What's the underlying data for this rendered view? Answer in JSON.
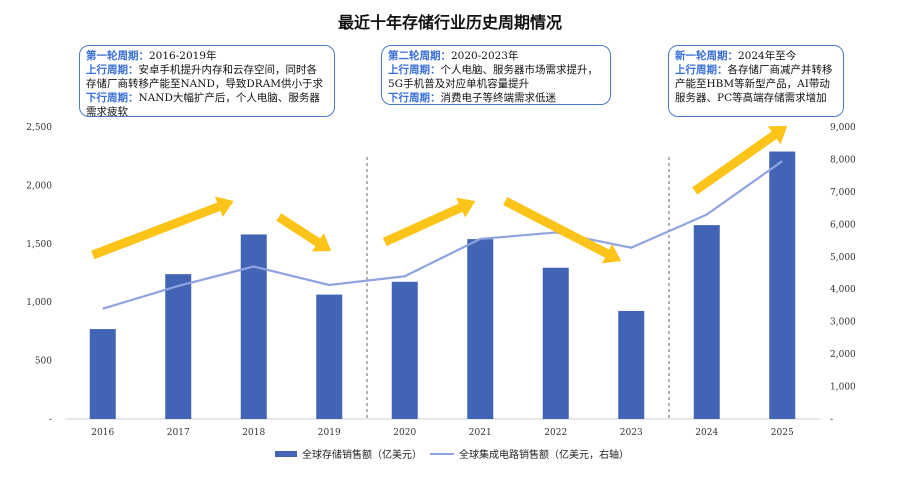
{
  "title": "最近十年存储行业历史周期情况",
  "chart_data": {
    "type": "bar+line",
    "categories": [
      "2016",
      "2017",
      "2018",
      "2019",
      "2020",
      "2021",
      "2022",
      "2023",
      "2024",
      "2025"
    ],
    "series": [
      {
        "name": "全球存储销售额（亿美元）",
        "type": "bar",
        "axis": "left",
        "values": [
          770,
          1240,
          1580,
          1065,
          1175,
          1540,
          1295,
          925,
          1660,
          2290
        ]
      },
      {
        "name": "全球集成电路销售额（亿美元，右轴）",
        "type": "line",
        "axis": "right",
        "values": [
          3400,
          4100,
          4700,
          4130,
          4400,
          5550,
          5750,
          5280,
          6300,
          7950
        ]
      }
    ],
    "left_axis": {
      "ylim": [
        0,
        2500
      ],
      "ticks": [
        "-",
        "500",
        "1,000",
        "1,500",
        "2,000",
        "2,500"
      ]
    },
    "right_axis": {
      "ylim": [
        0,
        9000
      ],
      "ticks": [
        "-",
        "1,000",
        "2,000",
        "3,000",
        "4,000",
        "5,000",
        "6,000",
        "7,000",
        "8,000",
        "9,000"
      ]
    },
    "colors": {
      "bar": "#4264b4",
      "line": "#8ea3e0",
      "arrow": "#fcc419",
      "divider": "#999999"
    },
    "trend_arrows": [
      {
        "from": "2016",
        "to": "2018",
        "direction": "up"
      },
      {
        "from": "2018",
        "to": "2019",
        "direction": "down"
      },
      {
        "from": "2020",
        "to": "2021",
        "direction": "up"
      },
      {
        "from": "2021",
        "to": "2023",
        "direction": "down"
      },
      {
        "from": "2024",
        "to": "2025",
        "direction": "up"
      }
    ],
    "dividers_between": [
      [
        "2019",
        "2020"
      ],
      [
        "2023",
        "2024"
      ]
    ]
  },
  "annotations": [
    {
      "lines": [
        [
          {
            "k": "第一轮周期：",
            "t": "2016-2019年"
          }
        ],
        [
          {
            "k": "上行周期：",
            "t": "安卓手机提升内存和云存空间，同时各"
          }
        ],
        [
          {
            "k": "",
            "t": "存储厂商转移产能至NAND，导致DRAM供小于求"
          }
        ],
        [
          {
            "k": "下行周期：",
            "t": "NAND大幅扩产后，个人电脑、服务器"
          }
        ],
        [
          {
            "k": "",
            "t": "需求疲软"
          }
        ]
      ]
    },
    {
      "lines": [
        [
          {
            "k": "第二轮周期：",
            "t": "2020-2023年"
          }
        ],
        [
          {
            "k": "上行周期：",
            "t": "个人电脑、服务器市场需求提升，"
          }
        ],
        [
          {
            "k": "",
            "t": "5G手机普及对应单机容量提升"
          }
        ],
        [
          {
            "k": "下行周期：",
            "t": "消费电子等终端需求低迷"
          }
        ]
      ]
    },
    {
      "lines": [
        [
          {
            "k": "新一轮周期：",
            "t": "2024年至今"
          }
        ],
        [
          {
            "k": "上行周期：",
            "t": "各存储厂商减产并转移"
          }
        ],
        [
          {
            "k": "",
            "t": "产能至HBM等新型产品，AI带动"
          }
        ],
        [
          {
            "k": "",
            "t": "服务器、PC等高端存储需求增加"
          }
        ]
      ]
    }
  ]
}
